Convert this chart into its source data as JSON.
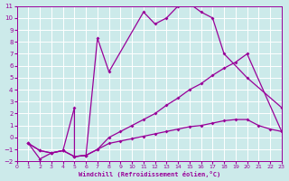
{
  "xlabel": "Windchill (Refroidissement éolien,°C)",
  "bg_color": "#cceaea",
  "line_color": "#990099",
  "grid_color": "#ffffff",
  "xmin": 0,
  "xmax": 23,
  "ymin": -2,
  "ymax": 11,
  "line1_x": [
    1,
    2,
    3,
    4,
    5,
    5,
    6,
    7,
    8,
    11,
    12,
    13,
    14,
    15,
    16,
    17,
    18,
    20,
    23
  ],
  "line1_y": [
    -0.5,
    -1.8,
    -1.3,
    -1.1,
    2.5,
    -1.6,
    -1.5,
    8.3,
    5.5,
    10.5,
    9.5,
    10.0,
    11.0,
    11.2,
    10.5,
    10.0,
    7.0,
    5.0,
    2.5
  ],
  "line2_x": [
    1,
    2,
    3,
    4,
    5,
    6,
    7,
    8,
    9,
    10,
    11,
    12,
    13,
    14,
    15,
    16,
    17,
    18,
    19,
    20,
    23
  ],
  "line2_y": [
    -0.5,
    -1.1,
    -1.3,
    -1.1,
    -1.6,
    -1.5,
    -1.0,
    0.0,
    0.5,
    1.0,
    1.5,
    2.0,
    2.7,
    3.3,
    4.0,
    4.5,
    5.2,
    5.8,
    6.3,
    7.0,
    0.5
  ],
  "line3_x": [
    1,
    2,
    3,
    4,
    5,
    6,
    7,
    8,
    9,
    10,
    11,
    12,
    13,
    14,
    15,
    16,
    17,
    18,
    19,
    20,
    21,
    22,
    23
  ],
  "line3_y": [
    -0.5,
    -1.1,
    -1.3,
    -1.1,
    -1.6,
    -1.5,
    -1.0,
    -0.5,
    -0.3,
    -0.1,
    0.1,
    0.3,
    0.5,
    0.7,
    0.9,
    1.0,
    1.2,
    1.4,
    1.5,
    1.5,
    1.0,
    0.7,
    0.5
  ]
}
